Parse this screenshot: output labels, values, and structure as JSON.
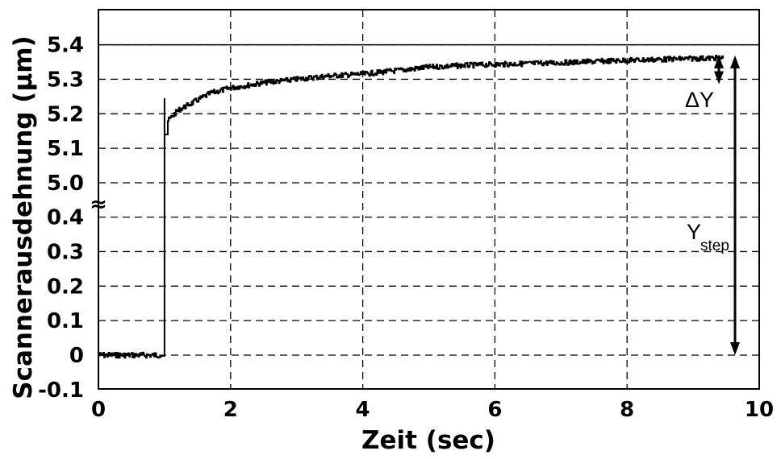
{
  "chart_data": {
    "type": "line",
    "xlabel": "Zeit (sec)",
    "ylabel": "Scannerausdehnung (µm)",
    "xlim": [
      0,
      10
    ],
    "x_ticks": [
      "0",
      "2",
      "4",
      "6",
      "8",
      "10"
    ],
    "y_ticks": [
      "-0.1",
      "0",
      "0.1",
      "0.2",
      "0.3",
      "0.4",
      "5.0",
      "5.1",
      "5.2",
      "5.3",
      "5.4"
    ],
    "axis_break": "≈",
    "grid": "dashed",
    "series": [
      {
        "x": [
          0,
          0.5,
          0.95,
          1.0,
          1.02,
          1.05,
          1.1,
          1.2,
          1.3,
          1.5,
          1.7,
          2.0,
          2.5,
          3.0,
          3.5,
          4.0,
          4.5,
          5.0,
          5.5,
          6.0,
          7.0,
          8.0,
          9.0,
          9.45
        ],
        "y": [
          0,
          0,
          0,
          5.245,
          5.14,
          5.18,
          5.19,
          5.21,
          5.22,
          5.24,
          5.26,
          5.275,
          5.29,
          5.3,
          5.31,
          5.315,
          5.325,
          5.335,
          5.34,
          5.343,
          5.348,
          5.355,
          5.36,
          5.362
        ]
      }
    ],
    "reference_line_y": 5.4,
    "annotations": [
      {
        "label": "ΔY",
        "from_y": 5.362,
        "to_y": 5.3
      },
      {
        "label": "Y",
        "subscript": "step",
        "from_y": 5.362,
        "to_y": 0
      }
    ]
  }
}
